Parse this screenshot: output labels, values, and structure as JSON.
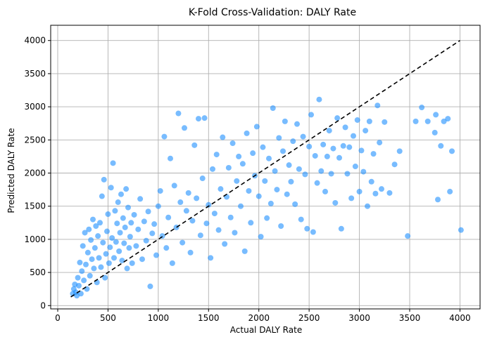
{
  "chart_data": {
    "type": "scatter",
    "title": "K-Fold Cross-Validation: DALY Rate",
    "xlabel": "Actual DALY Rate",
    "ylabel": "Predicted DALY Rate",
    "xlim": [
      -70,
      4200
    ],
    "ylim": [
      -50,
      4230
    ],
    "x_ticks": [
      0,
      500,
      1000,
      1500,
      2000,
      2500,
      3000,
      3500,
      4000
    ],
    "y_ticks": [
      0,
      500,
      1000,
      1500,
      2000,
      2500,
      3000,
      3500,
      4000
    ],
    "x_tick_labels": [
      "0",
      "500",
      "1000",
      "1500",
      "2000",
      "2500",
      "3000",
      "3500",
      "4000"
    ],
    "y_tick_labels": [
      "0",
      "500",
      "1000",
      "1500",
      "2000",
      "2500",
      "3000",
      "3500",
      "4000"
    ],
    "grid": true,
    "point_color": "#1e90ff",
    "point_opacity": 0.6,
    "reference_line": {
      "x": [
        130,
        4000
      ],
      "y": [
        130,
        4000
      ],
      "style": "dashed",
      "color": "#000000"
    },
    "points": [
      [
        150,
        180
      ],
      [
        160,
        250
      ],
      [
        170,
        320
      ],
      [
        180,
        200
      ],
      [
        190,
        150
      ],
      [
        200,
        420
      ],
      [
        210,
        300
      ],
      [
        220,
        650
      ],
      [
        230,
        180
      ],
      [
        240,
        520
      ],
      [
        250,
        900
      ],
      [
        260,
        380
      ],
      [
        270,
        1100
      ],
      [
        280,
        620
      ],
      [
        290,
        250
      ],
      [
        300,
        800
      ],
      [
        310,
        1150
      ],
      [
        320,
        450
      ],
      [
        330,
        990
      ],
      [
        340,
        700
      ],
      [
        350,
        1300
      ],
      [
        360,
        560
      ],
      [
        370,
        870
      ],
      [
        380,
        1200
      ],
      [
        390,
        350
      ],
      [
        400,
        1050
      ],
      [
        410,
        720
      ],
      [
        420,
        1250
      ],
      [
        430,
        580
      ],
      [
        440,
        1650
      ],
      [
        450,
        950
      ],
      [
        460,
        1900
      ],
      [
        470,
        420
      ],
      [
        480,
        780
      ],
      [
        490,
        1120
      ],
      [
        500,
        1380
      ],
      [
        510,
        640
      ],
      [
        520,
        880
      ],
      [
        530,
        1780
      ],
      [
        540,
        1020
      ],
      [
        550,
        2150
      ],
      [
        560,
        720
      ],
      [
        570,
        1430
      ],
      [
        580,
        960
      ],
      [
        590,
        1240
      ],
      [
        600,
        1560
      ],
      [
        610,
        820
      ],
      [
        620,
        1100
      ],
      [
        630,
        1680
      ],
      [
        640,
        680
      ],
      [
        650,
        1320
      ],
      [
        660,
        940
      ],
      [
        670,
        1180
      ],
      [
        680,
        1760
      ],
      [
        690,
        560
      ],
      [
        700,
        1480
      ],
      [
        710,
        870
      ],
      [
        720,
        1040
      ],
      [
        730,
        1250
      ],
      [
        740,
        640
      ],
      [
        760,
        1370
      ],
      [
        780,
        900
      ],
      [
        800,
        1150
      ],
      [
        820,
        1610
      ],
      [
        840,
        700
      ],
      [
        860,
        1270
      ],
      [
        880,
        980
      ],
      [
        900,
        1420
      ],
      [
        920,
        290
      ],
      [
        940,
        1090
      ],
      [
        960,
        1230
      ],
      [
        980,
        760
      ],
      [
        1000,
        1500
      ],
      [
        1020,
        1730
      ],
      [
        1040,
        1050
      ],
      [
        1060,
        2550
      ],
      [
        1080,
        870
      ],
      [
        1100,
        1330
      ],
      [
        1120,
        2220
      ],
      [
        1140,
        640
      ],
      [
        1160,
        1810
      ],
      [
        1180,
        1180
      ],
      [
        1200,
        2900
      ],
      [
        1220,
        1560
      ],
      [
        1240,
        950
      ],
      [
        1260,
        2680
      ],
      [
        1280,
        1430
      ],
      [
        1300,
        1700
      ],
      [
        1320,
        800
      ],
      [
        1340,
        1280
      ],
      [
        1360,
        2420
      ],
      [
        1380,
        1620
      ],
      [
        1400,
        2820
      ],
      [
        1420,
        1060
      ],
      [
        1440,
        1920
      ],
      [
        1460,
        2830
      ],
      [
        1480,
        1240
      ],
      [
        1500,
        1520
      ],
      [
        1520,
        720
      ],
      [
        1540,
        2060
      ],
      [
        1560,
        1390
      ],
      [
        1580,
        2280
      ],
      [
        1600,
        1140
      ],
      [
        1620,
        1760
      ],
      [
        1640,
        2540
      ],
      [
        1660,
        930
      ],
      [
        1680,
        1640
      ],
      [
        1700,
        2080
      ],
      [
        1720,
        1330
      ],
      [
        1740,
        2450
      ],
      [
        1760,
        1100
      ],
      [
        1780,
        1880
      ],
      [
        1800,
        2250
      ],
      [
        1820,
        1500
      ],
      [
        1840,
        2140
      ],
      [
        1860,
        820
      ],
      [
        1880,
        2600
      ],
      [
        1900,
        1730
      ],
      [
        1920,
        1250
      ],
      [
        1940,
        2300
      ],
      [
        1960,
        1960
      ],
      [
        1980,
        2700
      ],
      [
        2000,
        1650
      ],
      [
        2020,
        1040
      ],
      [
        2040,
        2390
      ],
      [
        2060,
        1880
      ],
      [
        2080,
        1320
      ],
      [
        2100,
        2220
      ],
      [
        2120,
        1540
      ],
      [
        2140,
        2980
      ],
      [
        2160,
        2030
      ],
      [
        2180,
        1750
      ],
      [
        2200,
        2530
      ],
      [
        2220,
        1200
      ],
      [
        2240,
        2330
      ],
      [
        2260,
        2780
      ],
      [
        2280,
        1680
      ],
      [
        2300,
        2120
      ],
      [
        2320,
        1870
      ],
      [
        2340,
        2480
      ],
      [
        2360,
        1530
      ],
      [
        2380,
        2740
      ],
      [
        2400,
        2060
      ],
      [
        2420,
        1300
      ],
      [
        2440,
        2550
      ],
      [
        2460,
        1980
      ],
      [
        2480,
        1160
      ],
      [
        2500,
        2400
      ],
      [
        2520,
        2880
      ],
      [
        2540,
        1110
      ],
      [
        2560,
        2260
      ],
      [
        2580,
        1850
      ],
      [
        2600,
        3110
      ],
      [
        2620,
        2030
      ],
      [
        2640,
        2430
      ],
      [
        2660,
        1720
      ],
      [
        2680,
        2250
      ],
      [
        2700,
        2640
      ],
      [
        2720,
        1990
      ],
      [
        2740,
        2370
      ],
      [
        2760,
        1550
      ],
      [
        2780,
        2830
      ],
      [
        2800,
        2230
      ],
      [
        2820,
        1160
      ],
      [
        2840,
        2410
      ],
      [
        2860,
        2690
      ],
      [
        2880,
        1990
      ],
      [
        2900,
        2390
      ],
      [
        2920,
        1620
      ],
      [
        2940,
        2560
      ],
      [
        2960,
        2100
      ],
      [
        2980,
        2800
      ],
      [
        3000,
        1720
      ],
      [
        3020,
        2340
      ],
      [
        3040,
        2020
      ],
      [
        3060,
        2640
      ],
      [
        3080,
        1500
      ],
      [
        3100,
        2780
      ],
      [
        3120,
        1870
      ],
      [
        3140,
        2290
      ],
      [
        3160,
        1690
      ],
      [
        3180,
        3020
      ],
      [
        3200,
        2460
      ],
      [
        3220,
        1760
      ],
      [
        3250,
        2770
      ],
      [
        3300,
        1700
      ],
      [
        3350,
        2130
      ],
      [
        3400,
        2330
      ],
      [
        3480,
        1050
      ],
      [
        3560,
        2780
      ],
      [
        3620,
        2990
      ],
      [
        3680,
        2780
      ],
      [
        3750,
        2610
      ],
      [
        3760,
        2880
      ],
      [
        3780,
        1600
      ],
      [
        3810,
        2410
      ],
      [
        3840,
        2780
      ],
      [
        3880,
        2820
      ],
      [
        3900,
        1720
      ],
      [
        3920,
        2330
      ],
      [
        4010,
        1140
      ]
    ]
  }
}
